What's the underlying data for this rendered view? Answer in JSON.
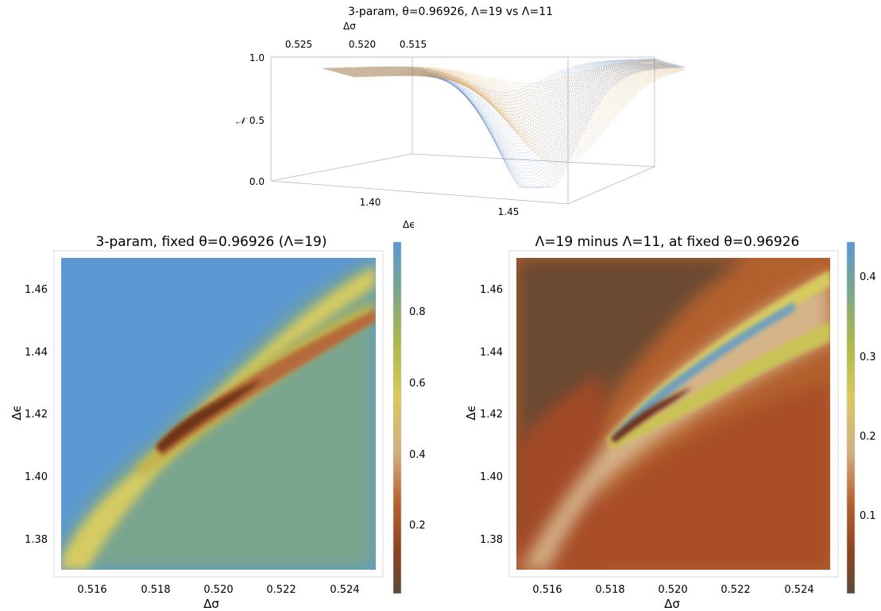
{
  "chart_data": [
    {
      "type": "surface3d",
      "title": "3-param, θ=0.96926, Λ=19 vs Λ=11",
      "xlabel": "Δσ",
      "ylabel": "Δϵ",
      "zlabel": "𝒩",
      "x_ticks": [
        "0.525",
        "0.520",
        "0.515"
      ],
      "y_ticks": [
        "1.40",
        "1.45"
      ],
      "z_ticks": [
        "0.0",
        "0.5",
        "1.0"
      ],
      "xlim": [
        0.515,
        0.525
      ],
      "ylim": [
        1.37,
        1.47
      ],
      "zlim": [
        0,
        1
      ],
      "series": [
        {
          "color": "#4a78c2"
        },
        {
          "color": "#d9922e"
        }
      ]
    },
    {
      "type": "heatmap",
      "title": "3-param, fixed θ=0.96926 (Λ=19)",
      "xlabel": "Δσ",
      "ylabel": "Δϵ",
      "xlim": [
        0.515,
        0.525
      ],
      "ylim": [
        1.37,
        1.47
      ],
      "x_ticks": [
        "0.516",
        "0.518",
        "0.520",
        "0.522",
        "0.524"
      ],
      "y_ticks": [
        "1.38",
        "1.40",
        "1.42",
        "1.44",
        "1.46"
      ],
      "colorbar": {
        "range": [
          0.02,
          0.96
        ],
        "ticks": [
          "0.2",
          "0.4",
          "0.6",
          "0.8"
        ]
      }
    },
    {
      "type": "heatmap",
      "title": "Λ=19 minus Λ=11, at fixed θ=0.96926",
      "xlabel": "Δσ",
      "ylabel": "Δϵ",
      "xlim": [
        0.515,
        0.525
      ],
      "ylim": [
        1.37,
        1.47
      ],
      "x_ticks": [
        "0.516",
        "0.518",
        "0.520",
        "0.522",
        "0.524"
      ],
      "y_ticks": [
        "1.38",
        "1.40",
        "1.42",
        "1.44",
        "1.46"
      ],
      "colorbar": {
        "range": [
          0.0,
          0.44
        ],
        "ticks": [
          "0.1",
          "0.2",
          "0.3",
          "0.4"
        ]
      }
    }
  ]
}
